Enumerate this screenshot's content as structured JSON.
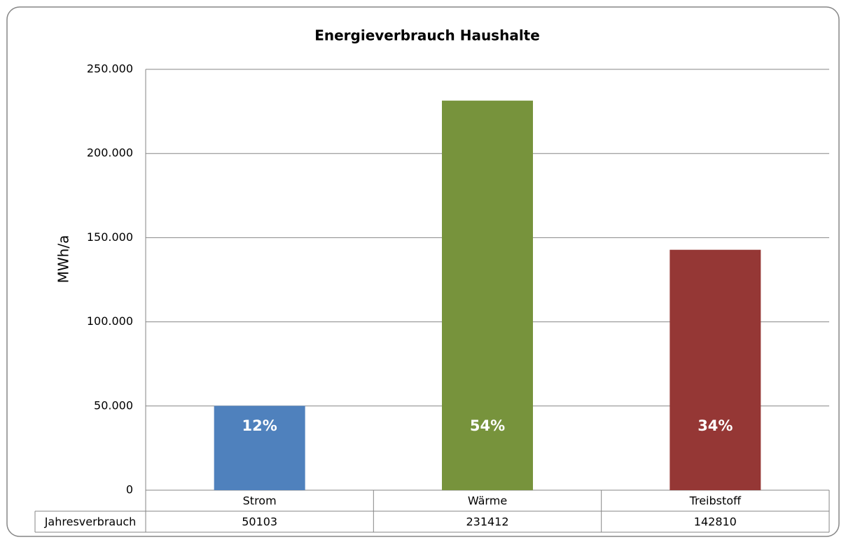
{
  "chart_data": {
    "type": "bar",
    "title": "Energieverbrauch Haushalte",
    "y_label": "MWh/a",
    "categories": [
      "Strom",
      "Wärme",
      "Treibstoff"
    ],
    "series": [
      {
        "name": "Jahresverbrauch",
        "colors": [
          "#4f81bd",
          "#77933c",
          "#953735"
        ],
        "values": [
          50103,
          231412,
          142810
        ],
        "shares": [
          12,
          54,
          34
        ],
        "share_labels": [
          "12%",
          "54%",
          "34%"
        ]
      }
    ],
    "ylim": [
      0,
      250000
    ],
    "yticks": [
      0,
      {
        "value": 50000,
        "label": "50.000"
      },
      {
        "value": 100000,
        "label": "100.000"
      },
      {
        "value": 150000,
        "label": "150.000"
      },
      {
        "value": 200000,
        "label": "200.000"
      },
      {
        "value": 250000,
        "label": "250.000"
      }
    ],
    "grid": true
  }
}
